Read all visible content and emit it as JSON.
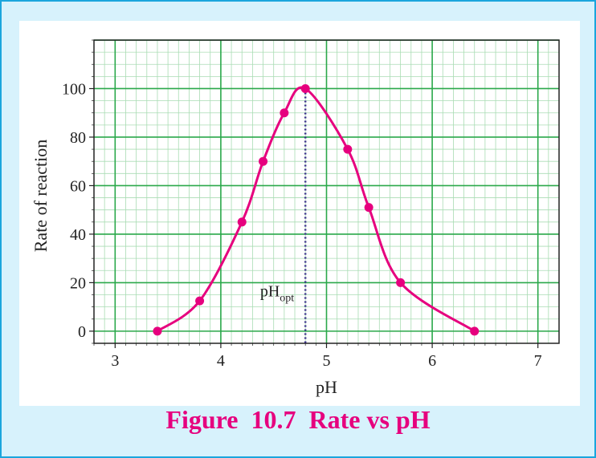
{
  "figure_caption": "Figure  10.7  Rate vs pH",
  "colors": {
    "frame_border": "#1ba6dd",
    "frame_bg": "#d7f2fc",
    "grid_major": "#2aa84a",
    "grid_minor": "#a9dcb3",
    "curve": "#e6007e",
    "opt_line": "#3a2c8c"
  },
  "chart_data": {
    "type": "line",
    "title": "",
    "xlabel": "pH",
    "ylabel": "Rate of reaction",
    "xlim": [
      2.8,
      7.2
    ],
    "ylim": [
      -5,
      120
    ],
    "x_ticks": [
      3,
      4,
      5,
      6,
      7
    ],
    "y_ticks": [
      0,
      20,
      40,
      60,
      80,
      100
    ],
    "grid": true,
    "series": [
      {
        "points": [
          {
            "x": 3.4,
            "y": 0
          },
          {
            "x": 3.8,
            "y": 12.5
          },
          {
            "x": 4.2,
            "y": 45
          },
          {
            "x": 4.4,
            "y": 70
          },
          {
            "x": 4.6,
            "y": 90
          },
          {
            "x": 4.8,
            "y": 100
          },
          {
            "x": 5.2,
            "y": 75
          },
          {
            "x": 5.4,
            "y": 51
          },
          {
            "x": 5.7,
            "y": 20
          },
          {
            "x": 6.4,
            "y": 0
          }
        ]
      }
    ],
    "annotations": [
      {
        "text": "pH",
        "subscript": "opt",
        "x": 4.8
      }
    ]
  }
}
